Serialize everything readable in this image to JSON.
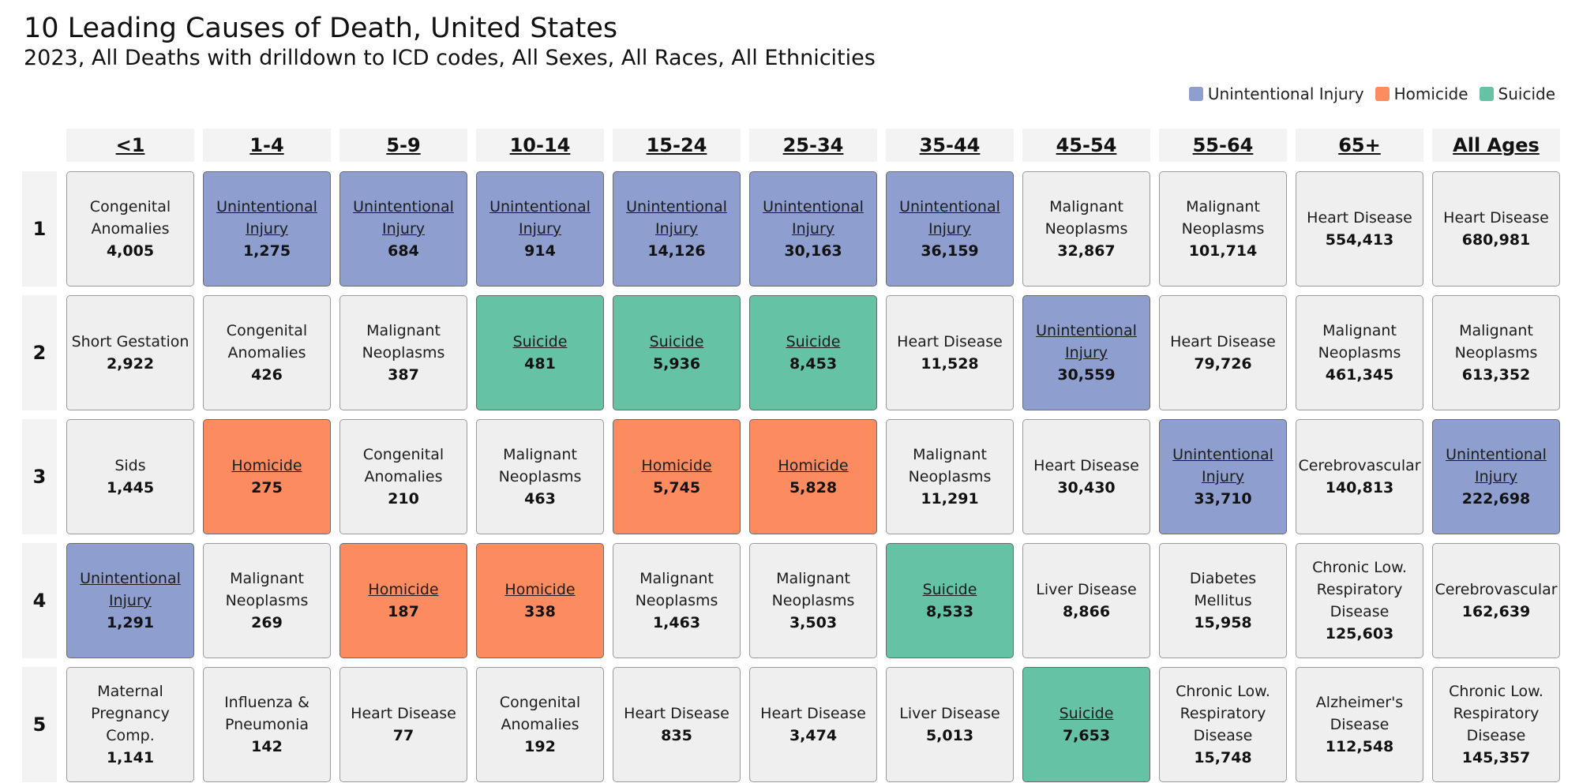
{
  "title": "10 Leading Causes of Death, United States",
  "subtitle": "2023, All Deaths with drilldown to ICD codes, All Sexes, All Races, All Ethnicities",
  "legend": [
    {
      "label": "Unintentional Injury",
      "color": "#8e9fcf"
    },
    {
      "label": "Homicide",
      "color": "#fc8c5f"
    },
    {
      "label": "Suicide",
      "color": "#66c2a5"
    }
  ],
  "chart_data": {
    "type": "table",
    "columns": [
      "<1",
      "1-4",
      "5-9",
      "10-14",
      "15-24",
      "25-34",
      "35-44",
      "45-54",
      "55-64",
      "65+",
      "All Ages"
    ],
    "ranks": [
      "1",
      "2",
      "3",
      "4",
      "5"
    ],
    "cells": [
      [
        {
          "cause": "Congenital Anomalies",
          "deaths": "4,005"
        },
        {
          "cause": "Unintentional Injury",
          "deaths": "1,275"
        },
        {
          "cause": "Unintentional Injury",
          "deaths": "684"
        },
        {
          "cause": "Unintentional Injury",
          "deaths": "914"
        },
        {
          "cause": "Unintentional Injury",
          "deaths": "14,126"
        },
        {
          "cause": "Unintentional Injury",
          "deaths": "30,163"
        },
        {
          "cause": "Unintentional Injury",
          "deaths": "36,159"
        },
        {
          "cause": "Malignant Neoplasms",
          "deaths": "32,867"
        },
        {
          "cause": "Malignant Neoplasms",
          "deaths": "101,714"
        },
        {
          "cause": "Heart Disease",
          "deaths": "554,413"
        },
        {
          "cause": "Heart Disease",
          "deaths": "680,981"
        }
      ],
      [
        {
          "cause": "Short Gestation",
          "deaths": "2,922"
        },
        {
          "cause": "Congenital Anomalies",
          "deaths": "426"
        },
        {
          "cause": "Malignant Neoplasms",
          "deaths": "387"
        },
        {
          "cause": "Suicide",
          "deaths": "481"
        },
        {
          "cause": "Suicide",
          "deaths": "5,936"
        },
        {
          "cause": "Suicide",
          "deaths": "8,453"
        },
        {
          "cause": "Heart Disease",
          "deaths": "11,528"
        },
        {
          "cause": "Unintentional Injury",
          "deaths": "30,559"
        },
        {
          "cause": "Heart Disease",
          "deaths": "79,726"
        },
        {
          "cause": "Malignant Neoplasms",
          "deaths": "461,345"
        },
        {
          "cause": "Malignant Neoplasms",
          "deaths": "613,352"
        }
      ],
      [
        {
          "cause": "Sids",
          "deaths": "1,445"
        },
        {
          "cause": "Homicide",
          "deaths": "275"
        },
        {
          "cause": "Congenital Anomalies",
          "deaths": "210"
        },
        {
          "cause": "Malignant Neoplasms",
          "deaths": "463"
        },
        {
          "cause": "Homicide",
          "deaths": "5,745"
        },
        {
          "cause": "Homicide",
          "deaths": "5,828"
        },
        {
          "cause": "Malignant Neoplasms",
          "deaths": "11,291"
        },
        {
          "cause": "Heart Disease",
          "deaths": "30,430"
        },
        {
          "cause": "Unintentional Injury",
          "deaths": "33,710"
        },
        {
          "cause": "Cerebrovascular",
          "deaths": "140,813"
        },
        {
          "cause": "Unintentional Injury",
          "deaths": "222,698"
        }
      ],
      [
        {
          "cause": "Unintentional Injury",
          "deaths": "1,291"
        },
        {
          "cause": "Malignant Neoplasms",
          "deaths": "269"
        },
        {
          "cause": "Homicide",
          "deaths": "187"
        },
        {
          "cause": "Homicide",
          "deaths": "338"
        },
        {
          "cause": "Malignant Neoplasms",
          "deaths": "1,463"
        },
        {
          "cause": "Malignant Neoplasms",
          "deaths": "3,503"
        },
        {
          "cause": "Suicide",
          "deaths": "8,533"
        },
        {
          "cause": "Liver Disease",
          "deaths": "8,866"
        },
        {
          "cause": "Diabetes Mellitus",
          "deaths": "15,958"
        },
        {
          "cause": "Chronic Low. Respiratory Disease",
          "deaths": "125,603"
        },
        {
          "cause": "Cerebrovascular",
          "deaths": "162,639"
        }
      ],
      [
        {
          "cause": "Maternal Pregnancy Comp.",
          "deaths": "1,141"
        },
        {
          "cause": "Influenza & Pneumonia",
          "deaths": "142"
        },
        {
          "cause": "Heart Disease",
          "deaths": "77"
        },
        {
          "cause": "Congenital Anomalies",
          "deaths": "192"
        },
        {
          "cause": "Heart Disease",
          "deaths": "835"
        },
        {
          "cause": "Heart Disease",
          "deaths": "3,474"
        },
        {
          "cause": "Liver Disease",
          "deaths": "5,013"
        },
        {
          "cause": "Suicide",
          "deaths": "7,653"
        },
        {
          "cause": "Chronic Low. Respiratory Disease",
          "deaths": "15,748"
        },
        {
          "cause": "Alzheimer's Disease",
          "deaths": "112,548"
        },
        {
          "cause": "Chronic Low. Respiratory Disease",
          "deaths": "145,357"
        }
      ]
    ]
  }
}
